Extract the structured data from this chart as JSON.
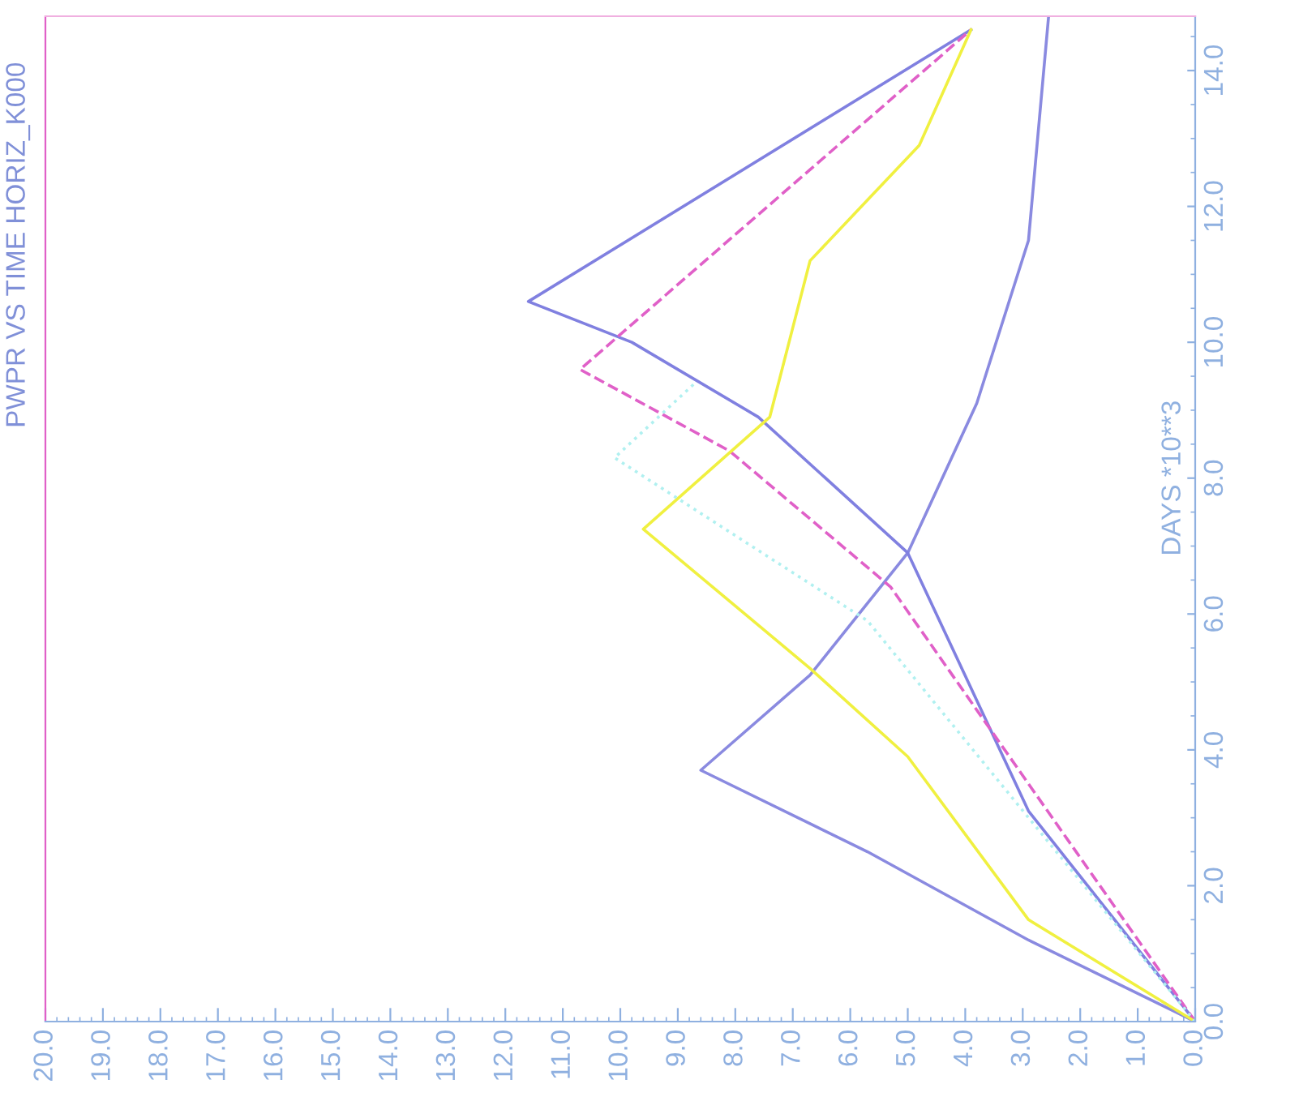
{
  "chart_data": {
    "type": "line",
    "title": "PWPR VS TIME HORIZ_K000",
    "ylabel": "DAYS *10**3",
    "ylim": [
      0,
      14.8
    ],
    "yticks": [
      {
        "value": 0,
        "label": "0.0"
      },
      {
        "value": 2,
        "label": "2.0"
      },
      {
        "value": 4,
        "label": "4.0"
      },
      {
        "value": 6,
        "label": "6.0"
      },
      {
        "value": 8,
        "label": "8.0"
      },
      {
        "value": 10,
        "label": "10.0"
      },
      {
        "value": 12,
        "label": "12.0"
      },
      {
        "value": 14,
        "label": "14.0"
      }
    ],
    "xlim": [
      20,
      0
    ],
    "xticks": [
      {
        "value": 0,
        "label": "0.0"
      },
      {
        "value": 1,
        "label": "1.0"
      },
      {
        "value": 2,
        "label": "2.0"
      },
      {
        "value": 3,
        "label": "3.0"
      },
      {
        "value": 4,
        "label": "4.0"
      },
      {
        "value": 5,
        "label": "5.0"
      },
      {
        "value": 6,
        "label": "6.0"
      },
      {
        "value": 7,
        "label": "7.0"
      },
      {
        "value": 8,
        "label": "8.0"
      },
      {
        "value": 9,
        "label": "9.0"
      },
      {
        "value": 10,
        "label": "10.0"
      },
      {
        "value": 11,
        "label": "11.0"
      },
      {
        "value": 12,
        "label": "12.0"
      },
      {
        "value": 13,
        "label": "13.0"
      },
      {
        "value": 14,
        "label": "14.0"
      },
      {
        "value": 15,
        "label": "15.0"
      },
      {
        "value": 16,
        "label": "16.0"
      },
      {
        "value": 17,
        "label": "17.0"
      },
      {
        "value": 18,
        "label": "18.0"
      },
      {
        "value": 19,
        "label": "19.0"
      },
      {
        "value": 20,
        "label": "20.0"
      }
    ],
    "grid": false,
    "series": [
      {
        "color": "#8a8ae0",
        "x": [
          0,
          2.9,
          5.7,
          8.6,
          6.7,
          5.0,
          3.8,
          2.9,
          2.55
        ],
        "values": [
          0,
          1.2,
          2.5,
          3.7,
          5.1,
          6.9,
          9.1,
          11.5,
          14.8
        ]
      },
      {
        "color": "#8080e0",
        "x": [
          0,
          2.9,
          5.0,
          7.6,
          9.8,
          11.6,
          3.9
        ],
        "values": [
          0,
          3.1,
          6.9,
          8.9,
          10.0,
          10.6,
          14.6
        ]
      },
      {
        "color": "#e060c8",
        "line_style": "dashed",
        "x": [
          0,
          2.9,
          5.3,
          8.1,
          10.7,
          3.9
        ],
        "values": [
          0,
          3.5,
          6.4,
          8.4,
          9.6,
          14.6
        ]
      },
      {
        "color": "#f0f040",
        "x": [
          0,
          2.9,
          5.0,
          6.7,
          9.6,
          7.4,
          6.7,
          4.8,
          3.9
        ],
        "values": [
          0,
          1.5,
          3.9,
          5.2,
          7.25,
          8.9,
          11.2,
          12.9,
          14.6
        ]
      },
      {
        "color": "#b0f0f0",
        "line_style": "dotted",
        "x": [
          0,
          5.7,
          10.1,
          8.7
        ],
        "values": [
          0,
          5.9,
          8.3,
          9.4
        ]
      }
    ]
  }
}
